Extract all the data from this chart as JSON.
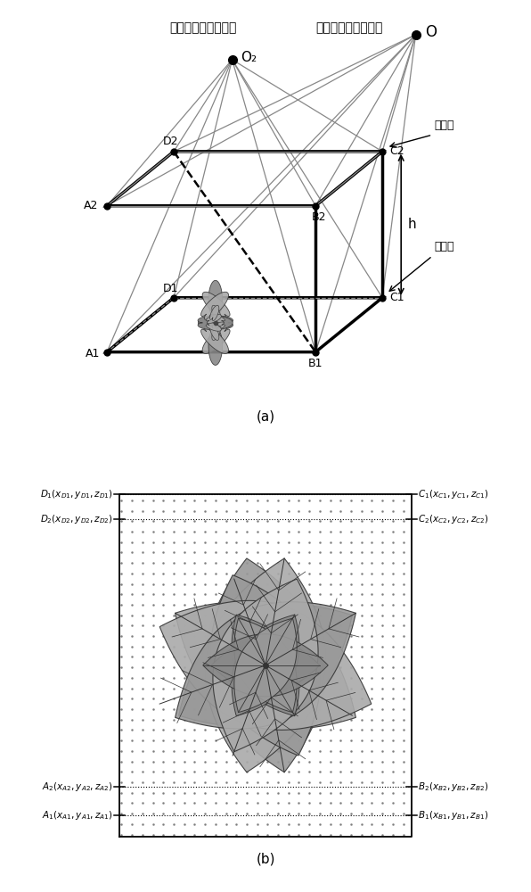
{
  "title_a": "(a)",
  "title_b": "(b)",
  "label_laser": "激光扫描器光圈中心",
  "label_depth": "深度传感器光圈中心",
  "label_bg": "背景板",
  "label_O": "O",
  "label_O2": "O₂",
  "label_h": "h",
  "bg_color": "#ffffff",
  "line_color": "#000000",
  "gray_color": "#888888",
  "dot_color": "#555555",
  "panel_b_dot_color": "#777777",
  "plant_gray": "#999999",
  "plant_dark": "#666666"
}
